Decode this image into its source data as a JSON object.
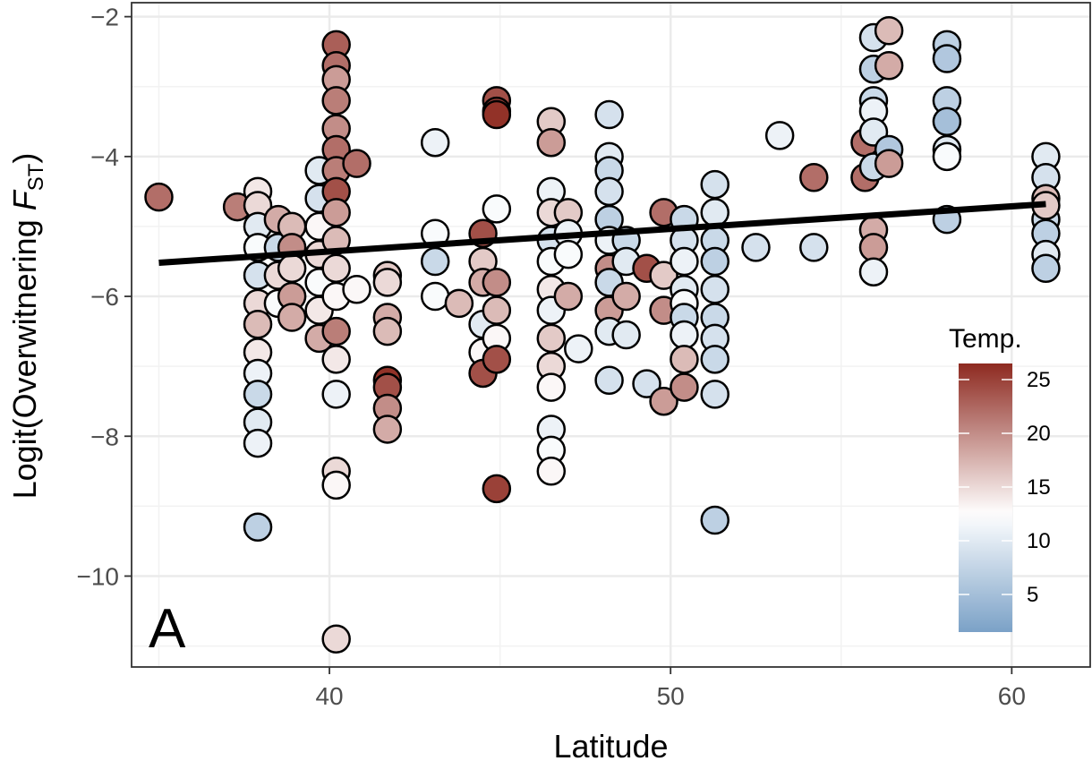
{
  "chart_data": {
    "type": "scatter",
    "panel_label": "A",
    "xlabel": "Latitude",
    "ylabel": {
      "main": "Logit(Overwitnering ",
      "italic": "F",
      "subscript": "ST",
      "close": ")"
    },
    "xlim": [
      34.2,
      62.3
    ],
    "ylim": [
      -11.3,
      -1.8
    ],
    "x_ticks": [
      40,
      50,
      60
    ],
    "y_ticks": [
      -2,
      -4,
      -6,
      -8,
      -10
    ],
    "x_tick_labels": [
      "40",
      "50",
      "60"
    ],
    "y_tick_labels": [
      "−2",
      "−4",
      "−6",
      "−8",
      "−10"
    ],
    "grid": true,
    "legend": {
      "title": "Temp.",
      "position": "right-inside",
      "range": [
        1.5,
        26.5
      ],
      "ticks": [
        5,
        10,
        15,
        20,
        25
      ],
      "tick_labels": [
        "5",
        "10",
        "15",
        "20",
        "25"
      ],
      "colors": {
        "low": "#7ba1c7",
        "mid": "#ffffff",
        "high": "#8e2a20"
      },
      "midpoint": 12.5
    },
    "trend_line": {
      "x": [
        35,
        61
      ],
      "y": [
        -5.52,
        -4.68
      ],
      "color": "#000000"
    },
    "columns": [
      {
        "x": 35.0,
        "ys": [
          -4.58
        ],
        "temps": [
          22
        ]
      },
      {
        "x": 37.3,
        "ys": [
          -4.72
        ],
        "temps": [
          21
        ]
      },
      {
        "x": 37.9,
        "ys": [
          -4.5,
          -4.7,
          -5.0,
          -5.3,
          -5.7,
          -6.1,
          -6.4,
          -6.8,
          -7.1,
          -7.4,
          -7.8,
          -8.1,
          -9.3
        ],
        "temps": [
          14,
          15,
          10,
          12,
          9,
          15,
          17,
          14,
          11,
          8,
          10,
          11,
          7
        ]
      },
      {
        "x": 38.5,
        "ys": [
          -4.9,
          -5.3,
          -5.7,
          -6.1
        ],
        "temps": [
          18,
          8,
          15,
          12
        ]
      },
      {
        "x": 38.9,
        "ys": [
          -5.0,
          -5.3,
          -5.6,
          -6.0,
          -6.3
        ],
        "temps": [
          17,
          20,
          15,
          19,
          18
        ]
      },
      {
        "x": 39.7,
        "ys": [
          -4.2,
          -4.6,
          -5.0,
          -5.4,
          -5.8,
          -6.2,
          -6.6
        ],
        "temps": [
          10,
          9,
          13,
          15,
          12,
          14,
          18
        ]
      },
      {
        "x": 40.2,
        "ys": [
          -2.4,
          -2.7,
          -2.9,
          -3.2,
          -3.6,
          -3.9,
          -4.2,
          -4.5,
          -4.8,
          -5.2,
          -5.6,
          -6.0,
          -6.5,
          -6.9,
          -7.4,
          -8.5,
          -8.7,
          -10.9
        ],
        "temps": [
          23,
          22,
          19,
          21,
          20,
          22,
          21,
          24,
          19,
          17,
          15,
          13,
          21,
          14,
          11,
          15,
          13,
          15
        ]
      },
      {
        "x": 40.8,
        "ys": [
          -4.1,
          -5.9
        ],
        "temps": [
          22,
          13
        ]
      },
      {
        "x": 41.7,
        "ys": [
          -5.7,
          -5.8,
          -6.3,
          -6.5,
          -7.2,
          -7.3,
          -7.6,
          -7.9
        ],
        "temps": [
          16,
          15,
          18,
          17,
          26,
          24,
          20,
          18
        ]
      },
      {
        "x": 43.1,
        "ys": [
          -3.8,
          -5.1,
          -5.5,
          -6.0
        ],
        "temps": [
          11,
          12,
          8,
          12
        ]
      },
      {
        "x": 43.8,
        "ys": [
          -6.1
        ],
        "temps": [
          17
        ]
      },
      {
        "x": 44.5,
        "ys": [
          -5.1,
          -5.5,
          -5.8,
          -6.4,
          -6.8,
          -7.1
        ],
        "temps": [
          24,
          16,
          18,
          10,
          13,
          24
        ]
      },
      {
        "x": 44.9,
        "ys": [
          -3.2,
          -3.35,
          -3.4,
          -4.75,
          -5.8,
          -6.2,
          -6.6,
          -6.9,
          -8.75
        ],
        "temps": [
          24,
          25,
          26,
          12,
          20,
          17,
          13,
          24,
          25
        ]
      },
      {
        "x": 46.5,
        "ys": [
          -3.5,
          -3.8,
          -4.5,
          -4.8,
          -5.2,
          -5.5,
          -5.9,
          -6.2,
          -6.6,
          -7.0,
          -7.3,
          -7.9,
          -8.2,
          -8.5
        ],
        "temps": [
          16,
          19,
          11,
          15,
          9,
          12,
          14,
          11,
          16,
          15,
          13,
          11,
          12,
          13
        ]
      },
      {
        "x": 47.0,
        "ys": [
          -4.8,
          -5.1,
          -5.4,
          -6.0
        ],
        "temps": [
          16,
          11,
          12,
          18
        ]
      },
      {
        "x": 47.3,
        "ys": [
          -6.75
        ],
        "temps": [
          11
        ]
      },
      {
        "x": 48.2,
        "ys": [
          -3.4,
          -4.0,
          -4.2,
          -4.5,
          -4.9,
          -5.2,
          -5.6,
          -5.8,
          -6.2,
          -6.5,
          -7.2
        ],
        "temps": [
          9,
          10,
          8,
          9,
          7,
          11,
          20,
          8,
          19,
          10,
          9
        ]
      },
      {
        "x": 48.7,
        "ys": [
          -5.2,
          -5.5,
          -6.0,
          -6.55
        ],
        "temps": [
          8,
          10,
          18,
          10
        ]
      },
      {
        "x": 49.3,
        "ys": [
          -5.6,
          -7.25
        ],
        "temps": [
          24,
          9
        ]
      },
      {
        "x": 49.8,
        "ys": [
          -4.8,
          -5.7,
          -6.2,
          -7.5
        ],
        "temps": [
          22,
          16,
          20,
          19
        ]
      },
      {
        "x": 50.4,
        "ys": [
          -4.9,
          -5.2,
          -5.5,
          -5.9,
          -6.1,
          -6.3,
          -6.55,
          -6.9,
          -7.3
        ],
        "temps": [
          8,
          9,
          11,
          10,
          12,
          8,
          11,
          17,
          20
        ]
      },
      {
        "x": 51.3,
        "ys": [
          -4.4,
          -4.8,
          -5.2,
          -5.5,
          -5.9,
          -6.3,
          -6.6,
          -6.9,
          -7.4,
          -9.2
        ],
        "temps": [
          9,
          10,
          8,
          7,
          9,
          8,
          9,
          8,
          9,
          7
        ]
      },
      {
        "x": 52.5,
        "ys": [
          -5.3
        ],
        "temps": [
          9
        ]
      },
      {
        "x": 53.2,
        "ys": [
          -3.7
        ],
        "temps": [
          11
        ]
      },
      {
        "x": 54.2,
        "ys": [
          -4.3,
          -5.3
        ],
        "temps": [
          22,
          9
        ]
      },
      {
        "x": 55.7,
        "ys": [
          -3.8,
          -4.3
        ],
        "temps": [
          22,
          22
        ]
      },
      {
        "x": 55.95,
        "ys": [
          -2.3,
          -2.75,
          -3.2,
          -3.35,
          -3.65,
          -4.15,
          -5.05,
          -5.3,
          -5.65
        ],
        "temps": [
          9,
          7,
          8,
          11,
          10,
          8,
          18,
          19,
          11
        ]
      },
      {
        "x": 56.4,
        "ys": [
          -2.2,
          -2.7,
          -3.9,
          -4.1
        ],
        "temps": [
          17,
          18,
          6,
          19
        ]
      },
      {
        "x": 58.1,
        "ys": [
          -2.4,
          -2.6,
          -3.2,
          -3.5,
          -3.9,
          -4.0,
          -4.9
        ],
        "temps": [
          7,
          6,
          7,
          5,
          10,
          12,
          7
        ]
      },
      {
        "x": 61.0,
        "ys": [
          -4.0,
          -4.3,
          -4.6,
          -4.9,
          -5.1,
          -5.4,
          -5.6,
          -4.7
        ],
        "temps": [
          10,
          9,
          17,
          8,
          7,
          10,
          7,
          16
        ]
      }
    ]
  }
}
